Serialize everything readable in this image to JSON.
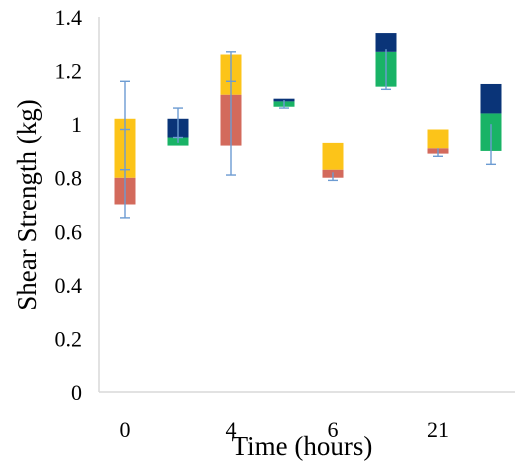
{
  "chart_data": {
    "type": "bar",
    "subtype": "floating-box",
    "title": "",
    "xlabel": "Time (hours)",
    "ylabel": "Shear Strength (kg)",
    "ylim": [
      0,
      1.4
    ],
    "yticks": [
      0,
      0.2,
      0.4,
      0.6,
      0.8,
      1,
      1.2,
      1.4
    ],
    "ytick_labels": [
      "0",
      "0.2",
      "0.4",
      "0.6",
      "0.8",
      "1",
      "1.2",
      "1.4"
    ],
    "x_group_labels": [
      "0",
      "4",
      "6",
      "21"
    ],
    "grid": false,
    "legend": "none",
    "boxes": [
      {
        "group": 0,
        "pos": 0,
        "lower": {
          "from": 0.7,
          "to": 0.8,
          "color": "#d36a5c"
        },
        "upper": {
          "from": 0.8,
          "to": 1.02,
          "color": "#fcc419"
        },
        "whisker": [
          0.65,
          1.16
        ],
        "whisker_caps": [
          0.65,
          0.83,
          0.98,
          1.16
        ]
      },
      {
        "group": 0,
        "pos": 1,
        "lower": {
          "from": 0.92,
          "to": 0.95,
          "color": "#19b366"
        },
        "upper": {
          "from": 0.95,
          "to": 1.02,
          "color": "#0a3478"
        },
        "whisker": [
          0.93,
          1.06
        ],
        "whisker_caps": [
          0.95,
          1.06
        ]
      },
      {
        "group": 1,
        "pos": 0,
        "lower": {
          "from": 0.92,
          "to": 1.11,
          "color": "#d36a5c"
        },
        "upper": {
          "from": 1.11,
          "to": 1.26,
          "color": "#fcc419"
        },
        "whisker": [
          0.81,
          1.27
        ],
        "whisker_caps": [
          0.81,
          1.16,
          1.27
        ]
      },
      {
        "group": 1,
        "pos": 1,
        "lower": {
          "from": 1.065,
          "to": 1.085,
          "color": "#19b366"
        },
        "upper": {
          "from": 1.085,
          "to": 1.095,
          "color": "#0a3478"
        },
        "whisker": [
          1.06,
          1.09
        ],
        "whisker_caps": [
          1.06
        ]
      },
      {
        "group": 2,
        "pos": 0,
        "lower": {
          "from": 0.8,
          "to": 0.83,
          "color": "#d36a5c"
        },
        "upper": {
          "from": 0.83,
          "to": 0.93,
          "color": "#fcc419"
        },
        "whisker": [
          0.79,
          0.82
        ],
        "whisker_caps": [
          0.79
        ]
      },
      {
        "group": 2,
        "pos": 1,
        "lower": {
          "from": 1.14,
          "to": 1.27,
          "color": "#19b366"
        },
        "upper": {
          "from": 1.27,
          "to": 1.34,
          "color": "#0a3478"
        },
        "whisker": [
          1.13,
          1.28
        ],
        "whisker_caps": [
          1.13
        ]
      },
      {
        "group": 3,
        "pos": 0,
        "lower": {
          "from": 0.89,
          "to": 0.91,
          "color": "#d36a5c"
        },
        "upper": {
          "from": 0.91,
          "to": 0.98,
          "color": "#fcc419"
        },
        "whisker": [
          0.88,
          0.91
        ],
        "whisker_caps": [
          0.88
        ]
      },
      {
        "group": 3,
        "pos": 1,
        "lower": {
          "from": 0.9,
          "to": 1.04,
          "color": "#19b366"
        },
        "upper": {
          "from": 1.04,
          "to": 1.15,
          "color": "#0a3478"
        },
        "whisker": [
          0.85,
          1.0
        ],
        "whisker_caps": [
          0.85
        ]
      }
    ],
    "axis_color": "#d9d9d9",
    "whisker_color": "#6c9bd2"
  }
}
